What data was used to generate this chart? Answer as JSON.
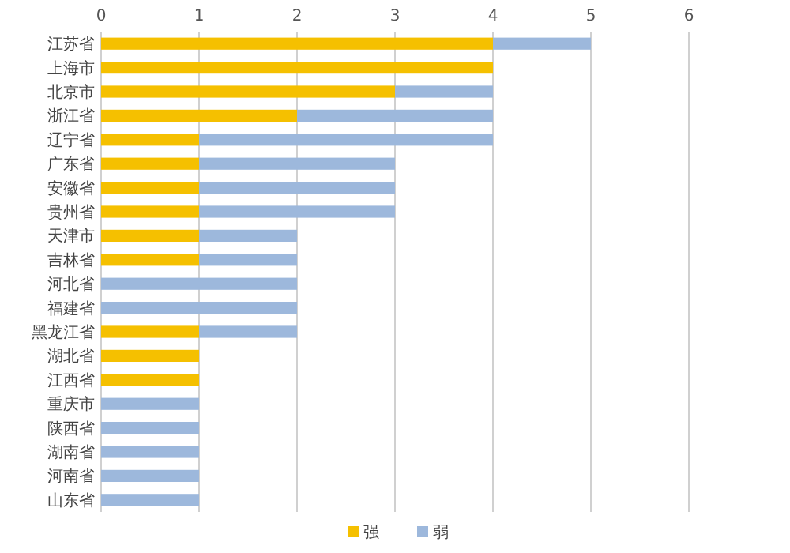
{
  "chart_data": {
    "type": "bar",
    "orientation": "horizontal",
    "stacked": true,
    "grid": "x",
    "legend": "bottom",
    "categories": [
      "江苏省",
      "上海市",
      "北京市",
      "浙江省",
      "辽宁省",
      "广东省",
      "安徽省",
      "贵州省",
      "天津市",
      "吉林省",
      "河北省",
      "福建省",
      "黑龙江省",
      "湖北省",
      "江西省",
      "重庆市",
      "陕西省",
      "湖南省",
      "河南省",
      "山东省"
    ],
    "xlim": [
      0,
      6
    ],
    "xticks": [
      0,
      1,
      2,
      3,
      4,
      5,
      6
    ],
    "series": [
      {
        "name": "强",
        "color": "#f5c000",
        "values": [
          4,
          4,
          3,
          2,
          1,
          1,
          1,
          1,
          1,
          1,
          0,
          0,
          1,
          1,
          1,
          0,
          0,
          0,
          0,
          0
        ]
      },
      {
        "name": "弱",
        "color": "#9db8dc",
        "values": [
          1,
          0,
          1,
          2,
          3,
          2,
          2,
          2,
          1,
          1,
          2,
          2,
          1,
          0,
          0,
          1,
          1,
          1,
          1,
          1
        ]
      }
    ]
  }
}
